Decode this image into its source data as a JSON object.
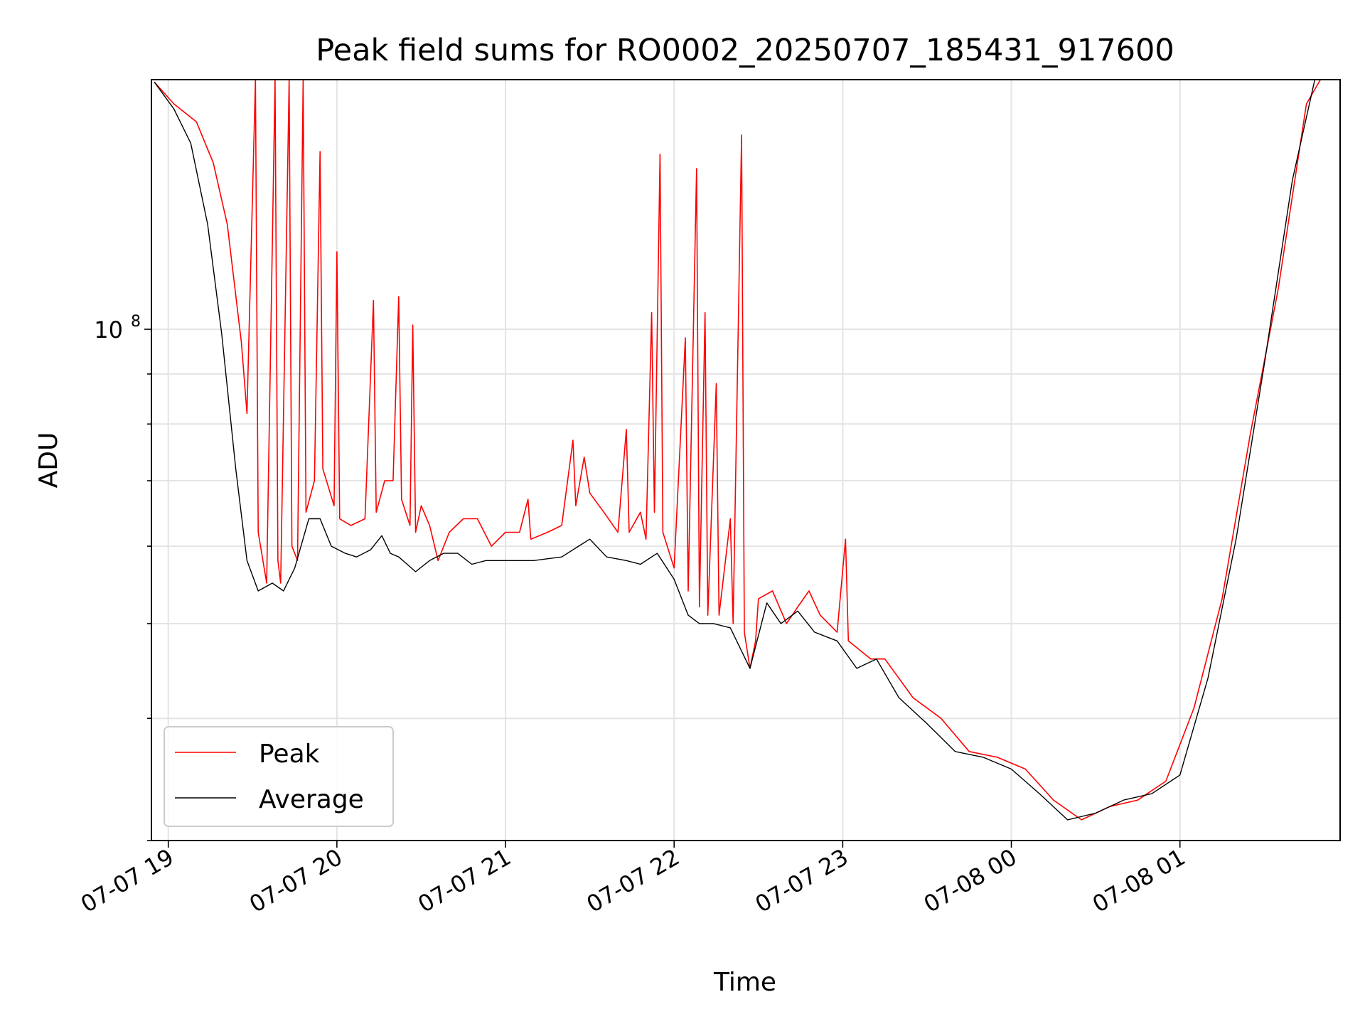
{
  "chart_data": {
    "type": "line",
    "title": "Peak field sums for RO0002_20250707_185431_917600",
    "xlabel": "Time",
    "ylabel": "ADU",
    "y_scale": "log",
    "x_range": [
      "2025-07-07T18:54",
      "2025-07-08T01:57"
    ],
    "ylim": [
      30000000,
      180000000
    ],
    "x_ticks": [
      "07-07 19",
      "07-07 20",
      "07-07 21",
      "07-07 22",
      "07-07 23",
      "07-08 00",
      "07-08 01"
    ],
    "y_ticks": [
      {
        "label": "10",
        "exponent": "8",
        "value": 100000000
      }
    ],
    "grid": true,
    "legend": {
      "position": "lower-left"
    },
    "series": [
      {
        "name": "Peak",
        "color": "#ff0000",
        "points": [
          [
            "2025-07-07T18:55",
            179000000
          ],
          [
            "2025-07-07T19:02",
            170000000
          ],
          [
            "2025-07-07T19:10",
            163000000
          ],
          [
            "2025-07-07T19:16",
            148000000
          ],
          [
            "2025-07-07T19:21",
            128000000
          ],
          [
            "2025-07-07T19:26",
            97000000
          ],
          [
            "2025-07-07T19:28",
            82000000
          ],
          [
            "2025-07-07T19:31",
            180000000
          ],
          [
            "2025-07-07T19:32",
            62000000
          ],
          [
            "2025-07-07T19:35",
            55000000
          ],
          [
            "2025-07-07T19:38",
            180000000
          ],
          [
            "2025-07-07T19:39",
            58000000
          ],
          [
            "2025-07-07T19:40",
            55000000
          ],
          [
            "2025-07-07T19:43",
            180000000
          ],
          [
            "2025-07-07T19:44",
            60000000
          ],
          [
            "2025-07-07T19:46",
            58000000
          ],
          [
            "2025-07-07T19:48",
            180000000
          ],
          [
            "2025-07-07T19:49",
            65000000
          ],
          [
            "2025-07-07T19:52",
            70000000
          ],
          [
            "2025-07-07T19:54",
            152000000
          ],
          [
            "2025-07-07T19:55",
            72000000
          ],
          [
            "2025-07-07T19:59",
            66000000
          ],
          [
            "2025-07-07T20:00",
            120000000
          ],
          [
            "2025-07-07T20:01",
            64000000
          ],
          [
            "2025-07-07T20:05",
            63000000
          ],
          [
            "2025-07-07T20:10",
            64000000
          ],
          [
            "2025-07-07T20:13",
            107000000
          ],
          [
            "2025-07-07T20:14",
            65000000
          ],
          [
            "2025-07-07T20:17",
            70000000
          ],
          [
            "2025-07-07T20:20",
            70000000
          ],
          [
            "2025-07-07T20:22",
            108000000
          ],
          [
            "2025-07-07T20:23",
            67000000
          ],
          [
            "2025-07-07T20:26",
            63000000
          ],
          [
            "2025-07-07T20:27",
            101000000
          ],
          [
            "2025-07-07T20:28",
            62000000
          ],
          [
            "2025-07-07T20:30",
            66000000
          ],
          [
            "2025-07-07T20:33",
            63000000
          ],
          [
            "2025-07-07T20:36",
            58000000
          ],
          [
            "2025-07-07T20:40",
            62000000
          ],
          [
            "2025-07-07T20:45",
            64000000
          ],
          [
            "2025-07-07T20:50",
            64000000
          ],
          [
            "2025-07-07T20:55",
            60000000
          ],
          [
            "2025-07-07T21:00",
            62000000
          ],
          [
            "2025-07-07T21:05",
            62000000
          ],
          [
            "2025-07-07T21:08",
            67000000
          ],
          [
            "2025-07-07T21:09",
            61000000
          ],
          [
            "2025-07-07T21:15",
            62000000
          ],
          [
            "2025-07-07T21:20",
            63000000
          ],
          [
            "2025-07-07T21:24",
            77000000
          ],
          [
            "2025-07-07T21:25",
            66000000
          ],
          [
            "2025-07-07T21:28",
            74000000
          ],
          [
            "2025-07-07T21:30",
            68000000
          ],
          [
            "2025-07-07T21:35",
            65000000
          ],
          [
            "2025-07-07T21:40",
            62000000
          ],
          [
            "2025-07-07T21:43",
            79000000
          ],
          [
            "2025-07-07T21:44",
            62000000
          ],
          [
            "2025-07-07T21:48",
            65000000
          ],
          [
            "2025-07-07T21:50",
            61000000
          ],
          [
            "2025-07-07T21:52",
            104000000
          ],
          [
            "2025-07-07T21:53",
            65000000
          ],
          [
            "2025-07-07T21:55",
            151000000
          ],
          [
            "2025-07-07T21:56",
            62000000
          ],
          [
            "2025-07-07T22:00",
            57000000
          ],
          [
            "2025-07-07T22:04",
            98000000
          ],
          [
            "2025-07-07T22:05",
            54000000
          ],
          [
            "2025-07-07T22:08",
            146000000
          ],
          [
            "2025-07-07T22:09",
            52000000
          ],
          [
            "2025-07-07T22:11",
            104000000
          ],
          [
            "2025-07-07T22:12",
            51000000
          ],
          [
            "2025-07-07T22:15",
            88000000
          ],
          [
            "2025-07-07T22:16",
            51000000
          ],
          [
            "2025-07-07T22:20",
            64000000
          ],
          [
            "2025-07-07T22:21",
            50000000
          ],
          [
            "2025-07-07T22:24",
            158000000
          ],
          [
            "2025-07-07T22:25",
            49000000
          ],
          [
            "2025-07-07T22:27",
            45000000
          ],
          [
            "2025-07-07T22:29",
            48000000
          ],
          [
            "2025-07-07T22:30",
            53000000
          ],
          [
            "2025-07-07T22:35",
            54000000
          ],
          [
            "2025-07-07T22:40",
            50000000
          ],
          [
            "2025-07-07T22:44",
            52000000
          ],
          [
            "2025-07-07T22:48",
            54000000
          ],
          [
            "2025-07-07T22:52",
            51000000
          ],
          [
            "2025-07-07T22:58",
            49000000
          ],
          [
            "2025-07-07T23:01",
            61000000
          ],
          [
            "2025-07-07T23:02",
            48000000
          ],
          [
            "2025-07-07T23:10",
            46000000
          ],
          [
            "2025-07-07T23:15",
            46000000
          ],
          [
            "2025-07-07T23:25",
            42000000
          ],
          [
            "2025-07-07T23:35",
            40000000
          ],
          [
            "2025-07-07T23:45",
            37000000
          ],
          [
            "2025-07-07T23:55",
            36500000
          ],
          [
            "2025-07-08T00:05",
            35500000
          ],
          [
            "2025-07-08T00:15",
            33000000
          ],
          [
            "2025-07-08T00:25",
            31500000
          ],
          [
            "2025-07-08T00:35",
            32500000
          ],
          [
            "2025-07-08T00:45",
            33000000
          ],
          [
            "2025-07-08T00:55",
            34500000
          ],
          [
            "2025-07-08T01:05",
            41000000
          ],
          [
            "2025-07-08T01:15",
            53000000
          ],
          [
            "2025-07-08T01:25",
            78000000
          ],
          [
            "2025-07-08T01:35",
            110000000
          ],
          [
            "2025-07-08T01:45",
            170000000
          ],
          [
            "2025-07-08T01:50",
            180000000
          ],
          [
            "2025-07-08T01:57",
            180000000
          ]
        ]
      },
      {
        "name": "Average",
        "color": "#000000",
        "points": [
          [
            "2025-07-07T18:55",
            179000000
          ],
          [
            "2025-07-07T19:02",
            168000000
          ],
          [
            "2025-07-07T19:08",
            155000000
          ],
          [
            "2025-07-07T19:14",
            128000000
          ],
          [
            "2025-07-07T19:19",
            99000000
          ],
          [
            "2025-07-07T19:24",
            72000000
          ],
          [
            "2025-07-07T19:28",
            58000000
          ],
          [
            "2025-07-07T19:32",
            54000000
          ],
          [
            "2025-07-07T19:37",
            55000000
          ],
          [
            "2025-07-07T19:41",
            54000000
          ],
          [
            "2025-07-07T19:45",
            57000000
          ],
          [
            "2025-07-07T19:50",
            64000000
          ],
          [
            "2025-07-07T19:54",
            64000000
          ],
          [
            "2025-07-07T19:58",
            60000000
          ],
          [
            "2025-07-07T20:03",
            59000000
          ],
          [
            "2025-07-07T20:07",
            58500000
          ],
          [
            "2025-07-07T20:12",
            59500000
          ],
          [
            "2025-07-07T20:16",
            61500000
          ],
          [
            "2025-07-07T20:19",
            59000000
          ],
          [
            "2025-07-07T20:22",
            58500000
          ],
          [
            "2025-07-07T20:25",
            57500000
          ],
          [
            "2025-07-07T20:28",
            56500000
          ],
          [
            "2025-07-07T20:33",
            58000000
          ],
          [
            "2025-07-07T20:38",
            59000000
          ],
          [
            "2025-07-07T20:43",
            59000000
          ],
          [
            "2025-07-07T20:48",
            57500000
          ],
          [
            "2025-07-07T20:53",
            58000000
          ],
          [
            "2025-07-07T21:00",
            58000000
          ],
          [
            "2025-07-07T21:10",
            58000000
          ],
          [
            "2025-07-07T21:20",
            58500000
          ],
          [
            "2025-07-07T21:26",
            60000000
          ],
          [
            "2025-07-07T21:30",
            61000000
          ],
          [
            "2025-07-07T21:36",
            58500000
          ],
          [
            "2025-07-07T21:43",
            58000000
          ],
          [
            "2025-07-07T21:48",
            57500000
          ],
          [
            "2025-07-07T21:54",
            59000000
          ],
          [
            "2025-07-07T22:00",
            55500000
          ],
          [
            "2025-07-07T22:05",
            51000000
          ],
          [
            "2025-07-07T22:09",
            50000000
          ],
          [
            "2025-07-07T22:14",
            50000000
          ],
          [
            "2025-07-07T22:20",
            49500000
          ],
          [
            "2025-07-07T22:27",
            45000000
          ],
          [
            "2025-07-07T22:33",
            52500000
          ],
          [
            "2025-07-07T22:38",
            50000000
          ],
          [
            "2025-07-07T22:44",
            51500000
          ],
          [
            "2025-07-07T22:50",
            49000000
          ],
          [
            "2025-07-07T22:58",
            48000000
          ],
          [
            "2025-07-07T23:05",
            45000000
          ],
          [
            "2025-07-07T23:12",
            46000000
          ],
          [
            "2025-07-07T23:20",
            42000000
          ],
          [
            "2025-07-07T23:30",
            39500000
          ],
          [
            "2025-07-07T23:40",
            37000000
          ],
          [
            "2025-07-07T23:50",
            36500000
          ],
          [
            "2025-07-08T00:00",
            35500000
          ],
          [
            "2025-07-08T00:10",
            33500000
          ],
          [
            "2025-07-08T00:20",
            31500000
          ],
          [
            "2025-07-08T00:30",
            32000000
          ],
          [
            "2025-07-08T00:40",
            33000000
          ],
          [
            "2025-07-08T00:50",
            33500000
          ],
          [
            "2025-07-08T01:00",
            35000000
          ],
          [
            "2025-07-08T01:10",
            44000000
          ],
          [
            "2025-07-08T01:20",
            61000000
          ],
          [
            "2025-07-08T01:30",
            92000000
          ],
          [
            "2025-07-08T01:40",
            142000000
          ],
          [
            "2025-07-08T01:48",
            180000000
          ],
          [
            "2025-07-08T01:57",
            180000000
          ]
        ]
      }
    ]
  }
}
